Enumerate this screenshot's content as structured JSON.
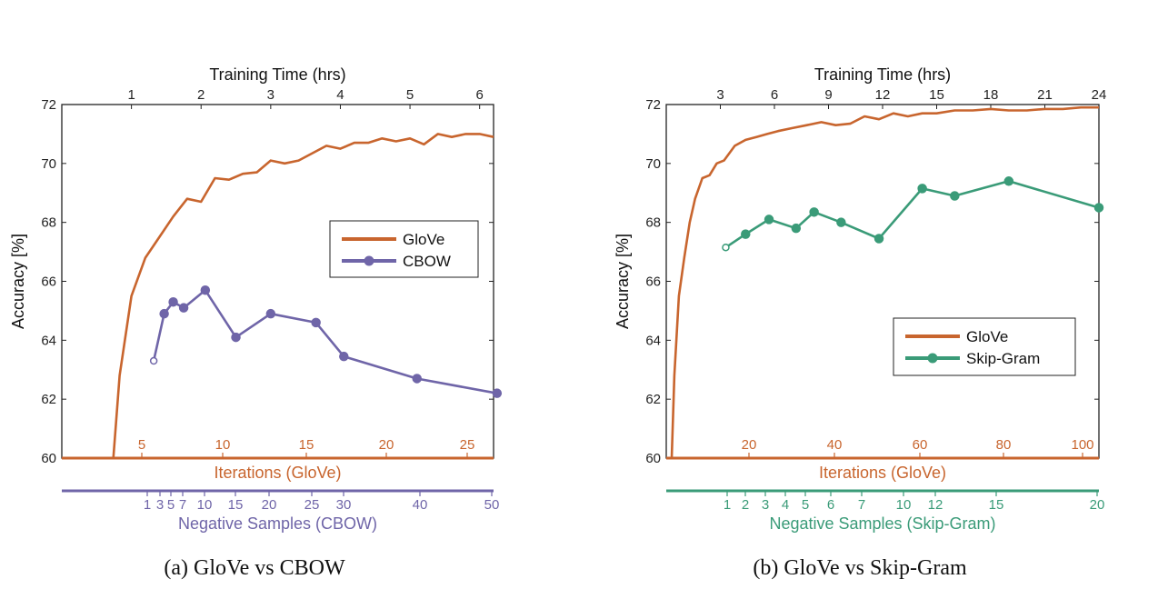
{
  "chart_data": [
    {
      "type": "line",
      "caption": "(a)  GloVe vs CBOW",
      "ylabel": "Accuracy [%]",
      "ylim": [
        60,
        72
      ],
      "yticks": [
        "60",
        "62",
        "64",
        "66",
        "68",
        "70",
        "72"
      ],
      "top_axis": {
        "label": "Training Time (hrs)",
        "ticks": [
          "1",
          "2",
          "3",
          "4",
          "5",
          "6"
        ]
      },
      "bottom_axis_1": {
        "label": "Iterations (GloVe)",
        "ticks": [
          "5",
          "10",
          "15",
          "20",
          "25"
        ]
      },
      "bottom_axis_2": {
        "label": "Negative Samples (CBOW)",
        "ticks": [
          "1",
          "3",
          "5",
          "7",
          "10",
          "15",
          "20",
          "25",
          "30",
          "40",
          "50"
        ]
      },
      "legend": {
        "placement": "center-right",
        "entries": [
          "GloVe",
          "CBOW"
        ]
      },
      "series": [
        {
          "name": "GloVe",
          "color": "#c8652e",
          "x": [
            0,
            0.74,
            0.83,
            1.0,
            1.2,
            1.4,
            1.6,
            1.8,
            2.0,
            2.2,
            2.4,
            2.6,
            2.8,
            3.0,
            3.2,
            3.4,
            3.6,
            3.8,
            4.0,
            4.2,
            4.4,
            4.6,
            4.8,
            5.0,
            5.2,
            5.4,
            5.6,
            5.8,
            6.0,
            6.2
          ],
          "y": [
            60,
            60,
            62.8,
            65.5,
            66.8,
            67.5,
            68.2,
            68.8,
            68.7,
            69.5,
            69.45,
            69.65,
            69.7,
            70.1,
            70.0,
            70.1,
            70.35,
            70.6,
            70.5,
            70.7,
            70.7,
            70.85,
            70.75,
            70.85,
            70.65,
            71.0,
            70.9,
            71.0,
            71.0,
            70.9
          ]
        },
        {
          "name": "CBOW",
          "color": "#6f65a8",
          "x": [
            1.32,
            1.47,
            1.6,
            1.75,
            2.06,
            2.5,
            3.0,
            3.65,
            4.05,
            5.1,
            6.25
          ],
          "y": [
            63.3,
            64.9,
            65.3,
            65.1,
            65.7,
            64.1,
            64.9,
            64.6,
            63.45,
            62.7,
            62.2
          ]
        }
      ]
    },
    {
      "type": "line",
      "caption": "(b)  GloVe vs Skip-Gram",
      "ylabel": "Accuracy [%]",
      "ylim": [
        60,
        72
      ],
      "yticks": [
        "60",
        "62",
        "64",
        "66",
        "68",
        "70",
        "72"
      ],
      "top_axis": {
        "label": "Training Time (hrs)",
        "ticks": [
          "3",
          "6",
          "9",
          "12",
          "15",
          "18",
          "21",
          "24"
        ]
      },
      "bottom_axis_1": {
        "label": "Iterations (GloVe)",
        "ticks": [
          "20",
          "40",
          "60",
          "80",
          "100"
        ]
      },
      "bottom_axis_2": {
        "label": "Negative Samples (Skip-Gram)",
        "ticks": [
          "1",
          "2",
          "3",
          "4",
          "5",
          "6",
          "7",
          "10",
          "12",
          "15",
          "20"
        ]
      },
      "legend": {
        "placement": "lower-right",
        "entries": [
          "GloVe",
          "Skip-Gram"
        ]
      },
      "series": [
        {
          "name": "GloVe",
          "color": "#c8652e",
          "x": [
            0,
            0.3,
            0.45,
            0.7,
            1.0,
            1.3,
            1.6,
            2.0,
            2.4,
            2.8,
            3.2,
            3.8,
            4.4,
            5.0,
            5.6,
            6.2,
            7.0,
            7.8,
            8.6,
            9.4,
            10.2,
            11.0,
            11.8,
            12.6,
            13.4,
            14.2,
            15.0,
            16.0,
            17.0,
            18.0,
            19.0,
            20.0,
            21.0,
            22.0,
            23.0,
            24.0
          ],
          "y": [
            60,
            60,
            62.8,
            65.5,
            66.8,
            68.0,
            68.8,
            69.5,
            69.6,
            70.0,
            70.1,
            70.6,
            70.8,
            70.9,
            71.0,
            71.1,
            71.2,
            71.3,
            71.4,
            71.3,
            71.35,
            71.6,
            71.5,
            71.7,
            71.6,
            71.7,
            71.7,
            71.8,
            71.8,
            71.85,
            71.8,
            71.8,
            71.85,
            71.85,
            71.9,
            71.9
          ]
        },
        {
          "name": "Skip-Gram",
          "color": "#3a9b78",
          "x": [
            3.3,
            4.4,
            5.7,
            7.2,
            8.2,
            9.7,
            11.8,
            14.2,
            16.0,
            19.0,
            24.0
          ],
          "y": [
            67.15,
            67.6,
            68.1,
            67.8,
            68.35,
            68.0,
            67.45,
            69.15,
            68.9,
            69.4,
            68.5
          ]
        }
      ]
    }
  ]
}
